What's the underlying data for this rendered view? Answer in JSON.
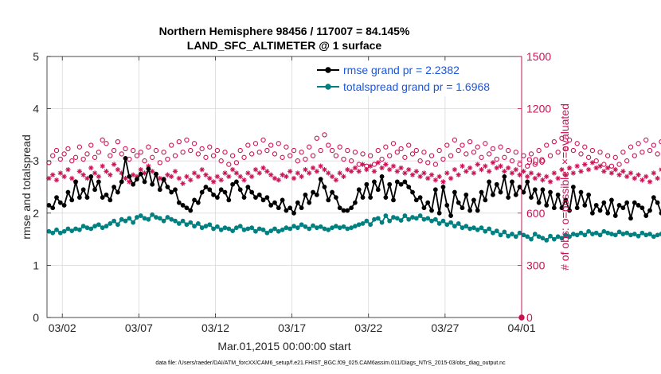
{
  "chart_data": {
    "type": "line",
    "title_line1": "Northern Hemisphere 98456 / 117007 = 84.145%",
    "title_line2": "LAND_SFC_ALTIMETER @ 1 surface",
    "xlabel": "Mar.01,2015 00:00:00 start",
    "ylabel_left": "rmse and totalspread",
    "ylabel_right": "# of obs: o=possible; ×=evaluated",
    "footer": "data file: /Users/raeder/DAI/ATM_forcXX/CAM6_setup/f.e21.FHIST_BGC.f09_025.CAM6assim.011/Diags_NTrS_2015-03/obs_diag_output.nc",
    "x_ticks": [
      "03/02",
      "03/07",
      "03/12",
      "03/17",
      "03/22",
      "03/27",
      "04/01"
    ],
    "x_tick_days": [
      1,
      6,
      11,
      16,
      21,
      26,
      31
    ],
    "xlim_days": [
      0,
      31
    ],
    "ylim_left": [
      0,
      5
    ],
    "yticks_left": [
      "0",
      "1",
      "2",
      "3",
      "4",
      "5"
    ],
    "ylim_right": [
      0,
      1500
    ],
    "yticks_right": [
      "0",
      "300",
      "600",
      "900",
      "1200",
      "1500"
    ],
    "colors": {
      "rmse": "#000000",
      "spread": "#008080",
      "obs": "#cc1155",
      "axis_right": "#cc1155",
      "legend_text": "#1a56e0"
    },
    "legend": [
      {
        "name": "rmse",
        "label": "rmse grand pr = 2.2382"
      },
      {
        "name": "spread",
        "label": "totalspread grand pr = 1.6968"
      }
    ],
    "bins_per_day": 4,
    "series": {
      "rmse": [
        2.15,
        2.1,
        2.3,
        2.2,
        2.15,
        2.4,
        2.25,
        2.6,
        2.3,
        2.45,
        2.3,
        2.7,
        2.45,
        2.6,
        2.3,
        2.35,
        2.25,
        2.5,
        2.4,
        2.6,
        3.05,
        2.7,
        2.55,
        2.65,
        2.75,
        2.6,
        2.85,
        2.55,
        2.75,
        2.45,
        2.65,
        2.5,
        2.4,
        2.45,
        2.2,
        2.15,
        2.1,
        2.05,
        2.25,
        2.2,
        2.4,
        2.5,
        2.45,
        2.35,
        2.3,
        2.45,
        2.4,
        2.25,
        2.55,
        2.6,
        2.45,
        2.3,
        2.5,
        2.4,
        2.3,
        2.35,
        2.25,
        2.3,
        2.15,
        2.2,
        2.1,
        2.25,
        2.05,
        2.1,
        2.0,
        2.2,
        2.1,
        2.35,
        2.2,
        2.4,
        2.35,
        2.65,
        2.5,
        2.25,
        2.4,
        2.3,
        2.1,
        2.05,
        2.05,
        2.1,
        2.2,
        2.45,
        2.3,
        2.55,
        2.3,
        2.6,
        2.45,
        2.7,
        2.3,
        2.55,
        2.25,
        2.6,
        2.55,
        2.6,
        2.5,
        2.4,
        2.25,
        2.3,
        2.1,
        2.2,
        2.05,
        2.45,
        2.0,
        2.5,
        2.15,
        1.95,
        2.4,
        2.2,
        2.1,
        2.35,
        2.05,
        2.25,
        2.05,
        2.4,
        2.25,
        2.6,
        2.35,
        2.55,
        2.4,
        2.7,
        2.3,
        2.6,
        2.35,
        2.5,
        2.4,
        2.6,
        2.3,
        2.45,
        2.2,
        2.45,
        2.15,
        2.4,
        2.1,
        2.35,
        2.1,
        2.25,
        2.05,
        2.5,
        2.1,
        2.4,
        2.15,
        2.35,
        2.0,
        2.15,
        2.05,
        2.2,
        2.0,
        2.25,
        1.95,
        2.15,
        2.1,
        2.2,
        1.9,
        2.2,
        2.15,
        2.1,
        1.95,
        2.05,
        2.3,
        2.2,
        2.0,
        2.4,
        2.1,
        2.5,
        2.05,
        2.35,
        2.0,
        2.2,
        1.95,
        1.95,
        1.9,
        1.95,
        1.95,
        2.05,
        2.2,
        2.0,
        2.4,
        2.15,
        2.5,
        2.1,
        2.3,
        2.1,
        2.1,
        2.2,
        2.65,
        1.95,
        2.45,
        2.1,
        2.5,
        2.3,
        2.25,
        2.05,
        2.15,
        2.05,
        2.3,
        2.0,
        2.2,
        2.25,
        2.05,
        2.3,
        2.0,
        2.2,
        2.1,
        2.3,
        2.4,
        2.2,
        2.3,
        2.1,
        2.2,
        2.25,
        2.15,
        2.05,
        2.0
      ],
      "spread": [
        1.65,
        1.62,
        1.68,
        1.62,
        1.65,
        1.7,
        1.66,
        1.7,
        1.68,
        1.75,
        1.72,
        1.7,
        1.75,
        1.78,
        1.72,
        1.75,
        1.8,
        1.85,
        1.78,
        1.88,
        1.85,
        1.9,
        1.82,
        1.92,
        1.95,
        1.9,
        1.88,
        1.97,
        1.92,
        1.9,
        1.85,
        1.92,
        1.88,
        1.85,
        1.8,
        1.85,
        1.78,
        1.82,
        1.75,
        1.8,
        1.72,
        1.75,
        1.78,
        1.7,
        1.74,
        1.68,
        1.72,
        1.7,
        1.66,
        1.72,
        1.75,
        1.68,
        1.7,
        1.72,
        1.65,
        1.7,
        1.68,
        1.62,
        1.66,
        1.7,
        1.65,
        1.68,
        1.72,
        1.7,
        1.75,
        1.72,
        1.78,
        1.74,
        1.7,
        1.76,
        1.72,
        1.74,
        1.7,
        1.68,
        1.72,
        1.75,
        1.72,
        1.74,
        1.7,
        1.72,
        1.75,
        1.78,
        1.8,
        1.85,
        1.78,
        1.88,
        1.9,
        1.82,
        1.95,
        1.85,
        1.92,
        1.9,
        1.86,
        1.95,
        1.88,
        1.92,
        1.9,
        1.95,
        1.88,
        1.9,
        1.85,
        1.88,
        1.8,
        1.85,
        1.78,
        1.82,
        1.75,
        1.8,
        1.72,
        1.75,
        1.7,
        1.72,
        1.68,
        1.72,
        1.65,
        1.7,
        1.62,
        1.66,
        1.58,
        1.64,
        1.56,
        1.6,
        1.55,
        1.62,
        1.58,
        1.55,
        1.5,
        1.6,
        1.55,
        1.52,
        1.48,
        1.56,
        1.5,
        1.55,
        1.52,
        1.58,
        1.55,
        1.6,
        1.58,
        1.62,
        1.58,
        1.65,
        1.6,
        1.62,
        1.58,
        1.65,
        1.62,
        1.6,
        1.58,
        1.64,
        1.6,
        1.62,
        1.58,
        1.6,
        1.56,
        1.62,
        1.58,
        1.6,
        1.55,
        1.58,
        1.6,
        1.62,
        1.58,
        1.64,
        1.6,
        1.66,
        1.62,
        1.65,
        1.6,
        1.66,
        1.62,
        1.64,
        1.66,
        1.62,
        1.68,
        1.65,
        1.7,
        1.66,
        1.72,
        1.68,
        1.74,
        1.7,
        1.76,
        1.72,
        1.78,
        1.74,
        1.8,
        1.76,
        1.72,
        1.78,
        1.74,
        1.8,
        1.76,
        1.72,
        1.74,
        1.7,
        1.72,
        1.68,
        1.72,
        1.66,
        1.7,
        1.72,
        1.66,
        1.7,
        1.64,
        1.68,
        1.7,
        1.66,
        1.72,
        1.7,
        1.74,
        1.7,
        1.76,
        1.72,
        1.78,
        1.74,
        1.7,
        1.65,
        1.62
      ],
      "obs_possible": [
        890,
        930,
        960,
        910,
        940,
        970,
        900,
        920,
        980,
        910,
        940,
        990,
        920,
        950,
        1020,
        1000,
        930,
        960,
        1010,
        940,
        970,
        910,
        960,
        930,
        950,
        900,
        980,
        920,
        960,
        890,
        950,
        910,
        990,
        930,
        1010,
        950,
        1020,
        960,
        1000,
        940,
        970,
        920,
        980,
        930,
        960,
        900,
        950,
        880,
        930,
        890,
        960,
        920,
        990,
        940,
        1000,
        950,
        1020,
        960,
        990,
        940,
        1000,
        920,
        980,
        930,
        960,
        900,
        950,
        910,
        980,
        930,
        1030,
        960,
        1050,
        990,
        960,
        930,
        980,
        910,
        960,
        900,
        950,
        880,
        940,
        870,
        930,
        880,
        960,
        910,
        980,
        930,
        1000,
        950,
        970,
        920,
        990,
        940,
        960,
        900,
        950,
        890,
        930,
        880,
        960,
        910,
        990,
        930,
        1020,
        960,
        990,
        940,
        1010,
        950,
        980,
        920,
        1000,
        940,
        970,
        910,
        980,
        920,
        960,
        900,
        950,
        880,
        930,
        870,
        940,
        880,
        960,
        900,
        990,
        930,
        1010,
        950,
        1030,
        970,
        1020,
        960,
        1000,
        940,
        980,
        920,
        960,
        900,
        950,
        880,
        930,
        870,
        920,
        880,
        950,
        900,
        980,
        930,
        1000,
        950,
        1020,
        960,
        990,
        940,
        1010,
        950,
        970,
        920,
        990,
        930,
        960,
        900,
        950,
        890,
        930,
        880,
        960,
        910,
        980,
        930,
        1000,
        950,
        1020,
        960,
        990,
        940,
        970,
        910,
        960,
        900,
        950,
        890,
        930,
        880,
        960,
        910,
        980,
        930,
        990,
        940,
        970,
        910,
        960,
        900,
        950,
        890,
        940,
        880,
        930,
        870,
        920,
        900,
        960,
        920,
        980,
        940,
        1000,
        950,
        1010,
        960,
        990
      ],
      "obs_evaluated": [
        800,
        820,
        790,
        830,
        810,
        850,
        800,
        780,
        840,
        820,
        800,
        860,
        830,
        810,
        870,
        840,
        820,
        880,
        850,
        830,
        800,
        780,
        820,
        810,
        850,
        830,
        870,
        840,
        820,
        800,
        790,
        820,
        810,
        840,
        800,
        770,
        810,
        790,
        830,
        810,
        850,
        820,
        800,
        780,
        810,
        790,
        830,
        810,
        850,
        830,
        810,
        790,
        830,
        810,
        850,
        830,
        860,
        840,
        820,
        800,
        790,
        820,
        810,
        840,
        800,
        830,
        810,
        850,
        830,
        860,
        840,
        870,
        850,
        830,
        810,
        790,
        830,
        810,
        850,
        840,
        860,
        840,
        880,
        850,
        870,
        840,
        890,
        860,
        880,
        850,
        870,
        840,
        860,
        830,
        850,
        820,
        840,
        810,
        830,
        800,
        820,
        790,
        810,
        780,
        830,
        800,
        850,
        820,
        870,
        840,
        860,
        830,
        880,
        850,
        870,
        840,
        890,
        860,
        870,
        840,
        860,
        830,
        850,
        820,
        840,
        810,
        830,
        800,
        820,
        790,
        810,
        780,
        830,
        800,
        850,
        820,
        860,
        830,
        870,
        840,
        880,
        850,
        890,
        860,
        870,
        840,
        860,
        830,
        850,
        820,
        840,
        810,
        830,
        800,
        820,
        790,
        810,
        780,
        830,
        800,
        850,
        820,
        860,
        830,
        840,
        810,
        820,
        790,
        830,
        800,
        840,
        810,
        850,
        820,
        830,
        800,
        810,
        790,
        820,
        800,
        830,
        810,
        840,
        820,
        850,
        830,
        860,
        840,
        870,
        850,
        860,
        840,
        850,
        820,
        840,
        810,
        830,
        800,
        820,
        790,
        810,
        780,
        830,
        800,
        820,
        790,
        810,
        800,
        830,
        810,
        840,
        820,
        850,
        830,
        840,
        820,
        830
      ],
      "obs_zero_marker": {
        "x_day": 31,
        "value": 0
      }
    }
  }
}
